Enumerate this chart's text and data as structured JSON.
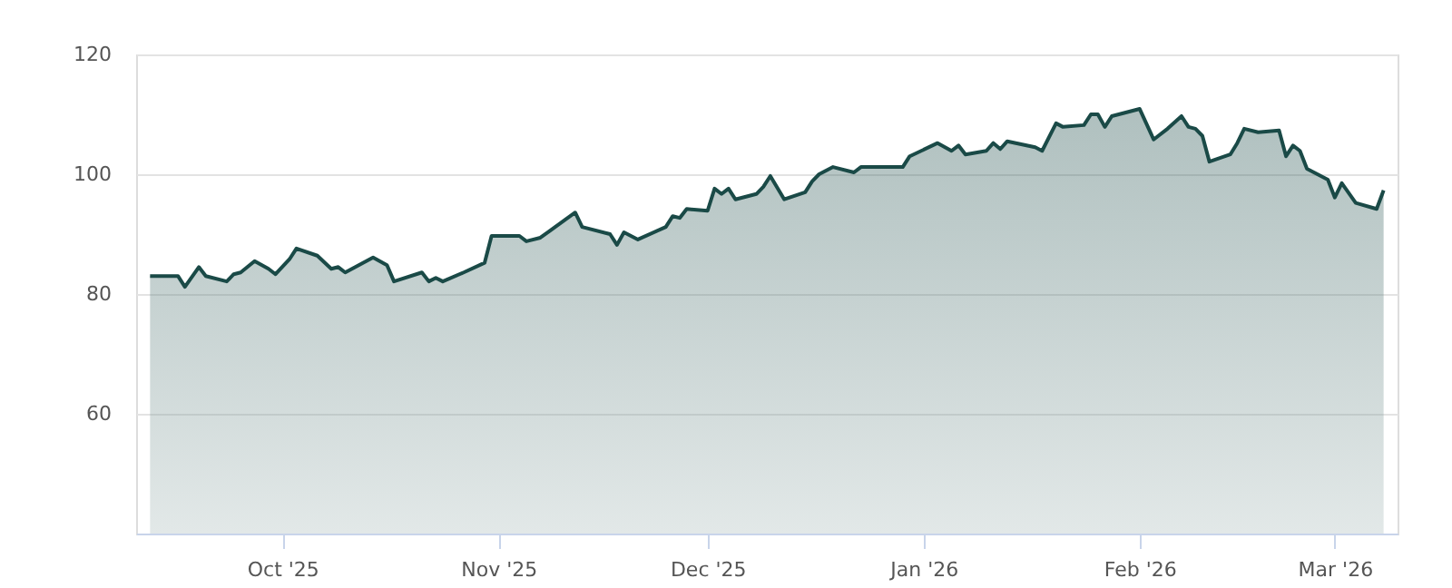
{
  "chart_data": {
    "type": "area",
    "grid": "y",
    "marker": "none",
    "line_style": "solid",
    "xlim": [
      "2025-09-10",
      "2026-03-10"
    ],
    "xticks": [
      {
        "value": "2025-10-01",
        "label": "Oct '25"
      },
      {
        "value": "2025-11-01",
        "label": "Nov '25"
      },
      {
        "value": "2025-12-01",
        "label": "Dec '25"
      },
      {
        "value": "2026-01-01",
        "label": "Jan '26"
      },
      {
        "value": "2026-02-01",
        "label": "Feb '26"
      },
      {
        "value": "2026-03-01",
        "label": "Mar '26"
      }
    ],
    "ylim": [
      40,
      120
    ],
    "yticks": [
      60,
      80,
      100,
      120
    ],
    "series": [
      {
        "color": "#1a4a47",
        "x": [
          "2025-09-12",
          "2025-09-16",
          "2025-09-17",
          "2025-09-19",
          "2025-09-20",
          "2025-09-23",
          "2025-09-24",
          "2025-09-25",
          "2025-09-27",
          "2025-09-29",
          "2025-09-30",
          "2025-10-02",
          "2025-10-03",
          "2025-10-06",
          "2025-10-08",
          "2025-10-09",
          "2025-10-10",
          "2025-10-14",
          "2025-10-16",
          "2025-10-17",
          "2025-10-21",
          "2025-10-22",
          "2025-10-23",
          "2025-10-24",
          "2025-10-27",
          "2025-10-30",
          "2025-10-31",
          "2025-11-04",
          "2025-11-05",
          "2025-11-07",
          "2025-11-12",
          "2025-11-13",
          "2025-11-17",
          "2025-11-18",
          "2025-11-19",
          "2025-11-21",
          "2025-11-25",
          "2025-11-26",
          "2025-11-27",
          "2025-11-28",
          "2025-12-01",
          "2025-12-02",
          "2025-12-03",
          "2025-12-04",
          "2025-12-05",
          "2025-12-08",
          "2025-12-09",
          "2025-12-10",
          "2025-12-12",
          "2025-12-15",
          "2025-12-16",
          "2025-12-17",
          "2025-12-19",
          "2025-12-22",
          "2025-12-23",
          "2025-12-29",
          "2025-12-30",
          "2026-01-03",
          "2026-01-05",
          "2026-01-06",
          "2026-01-07",
          "2026-01-10",
          "2026-01-11",
          "2026-01-12",
          "2026-01-13",
          "2026-01-17",
          "2026-01-18",
          "2026-01-20",
          "2026-01-21",
          "2026-01-24",
          "2026-01-25",
          "2026-01-26",
          "2026-01-27",
          "2026-01-28",
          "2026-02-01",
          "2026-02-03",
          "2026-02-05",
          "2026-02-07",
          "2026-02-08",
          "2026-02-09",
          "2026-02-10",
          "2026-02-11",
          "2026-02-14",
          "2026-02-15",
          "2026-02-16",
          "2026-02-18",
          "2026-02-21",
          "2026-02-22",
          "2026-02-23",
          "2026-02-24",
          "2026-02-25",
          "2026-02-28",
          "2026-03-01",
          "2026-03-02",
          "2026-03-04",
          "2026-03-07",
          "2026-03-08"
        ],
        "values": [
          83.0,
          83.0,
          81.2,
          84.5,
          83.0,
          82.1,
          83.3,
          83.6,
          85.5,
          84.2,
          83.3,
          85.8,
          87.6,
          86.4,
          84.2,
          84.5,
          83.6,
          86.1,
          84.8,
          82.1,
          83.6,
          82.1,
          82.7,
          82.1,
          83.6,
          85.2,
          89.7,
          89.7,
          88.8,
          89.4,
          93.6,
          91.2,
          90.0,
          88.2,
          90.3,
          89.1,
          91.2,
          93.0,
          92.7,
          94.2,
          93.9,
          97.6,
          96.7,
          97.6,
          95.8,
          96.7,
          97.9,
          99.7,
          95.8,
          97.0,
          98.8,
          100.0,
          101.2,
          100.3,
          101.2,
          101.2,
          103.0,
          105.2,
          103.9,
          104.8,
          103.3,
          103.9,
          105.2,
          104.2,
          105.5,
          104.5,
          103.9,
          108.5,
          107.9,
          108.2,
          110.0,
          110.0,
          107.9,
          109.7,
          110.9,
          105.8,
          107.6,
          109.7,
          107.9,
          107.6,
          106.4,
          102.1,
          103.3,
          105.2,
          107.6,
          107.0,
          107.3,
          103.0,
          104.8,
          103.9,
          100.9,
          99.1,
          96.1,
          98.5,
          95.2,
          94.2,
          97.3
        ]
      }
    ]
  }
}
